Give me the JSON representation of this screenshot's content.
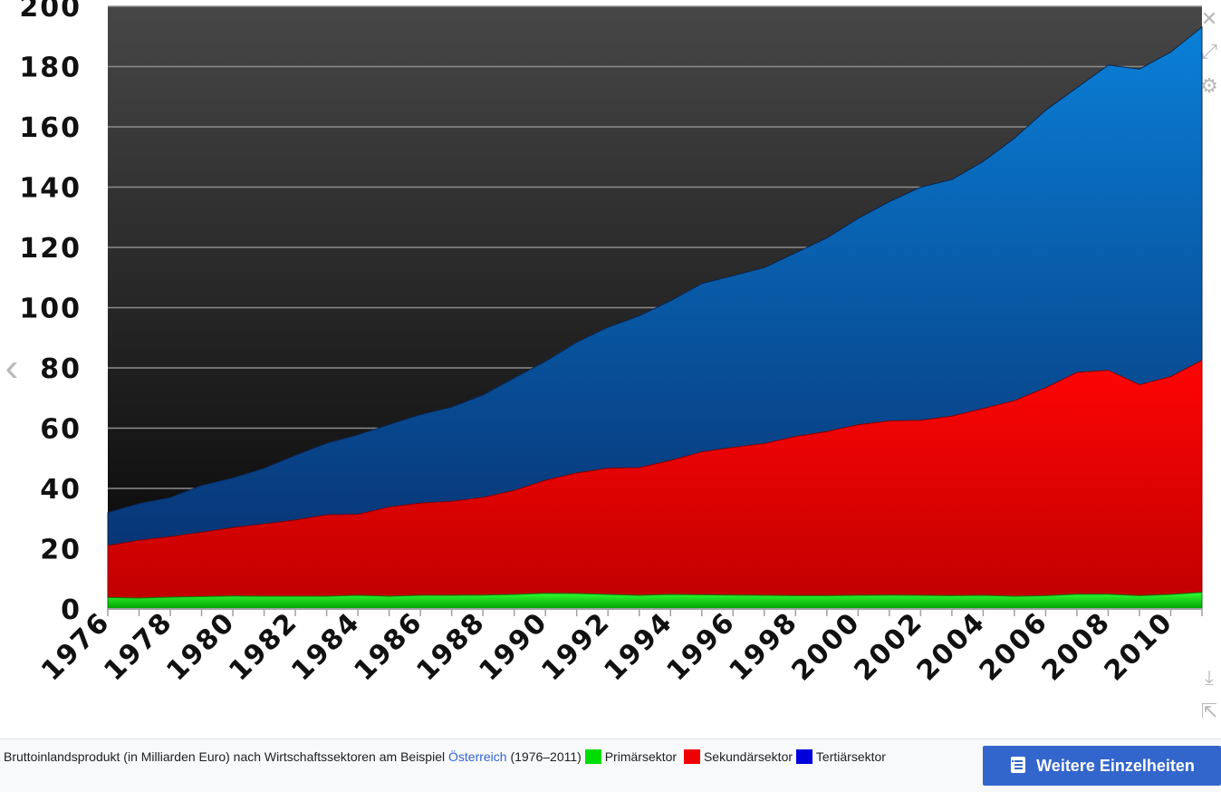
{
  "chart_data": {
    "type": "area",
    "stacked": true,
    "x": [
      1976,
      1977,
      1978,
      1979,
      1980,
      1981,
      1982,
      1983,
      1984,
      1985,
      1986,
      1987,
      1988,
      1989,
      1990,
      1991,
      1992,
      1993,
      1994,
      1995,
      1996,
      1997,
      1998,
      1999,
      2000,
      2001,
      2002,
      2003,
      2004,
      2005,
      2006,
      2007,
      2008,
      2009,
      2010,
      2011
    ],
    "xticks": [
      "1976",
      "1978",
      "1980",
      "1982",
      "1984",
      "1986",
      "1988",
      "1990",
      "1992",
      "1994",
      "1996",
      "1998",
      "2000",
      "2002",
      "2004",
      "2006",
      "2008",
      "2010"
    ],
    "yticks": [
      "0",
      "20",
      "40",
      "60",
      "80",
      "100",
      "120",
      "140",
      "160",
      "180",
      "200"
    ],
    "ylim": [
      0,
      200
    ],
    "grid": true,
    "series": [
      {
        "name": "Primärsektor",
        "color": "#00cc00",
        "values": [
          3.8,
          3.6,
          3.9,
          4.1,
          4.3,
          4.2,
          4.2,
          4.2,
          4.5,
          4.2,
          4.5,
          4.5,
          4.6,
          4.8,
          5.2,
          5.1,
          4.8,
          4.5,
          4.8,
          4.7,
          4.6,
          4.5,
          4.4,
          4.4,
          4.5,
          4.6,
          4.5,
          4.4,
          4.5,
          4.2,
          4.4,
          4.9,
          4.9,
          4.4,
          4.8,
          5.5
        ]
      },
      {
        "name": "Sekundärsektor",
        "color": "#ff0000",
        "values": [
          17.2,
          19.2,
          20.1,
          21.3,
          22.7,
          24.0,
          25.3,
          27.0,
          26.9,
          29.6,
          30.6,
          31.2,
          32.4,
          34.5,
          37.5,
          40.0,
          41.9,
          42.4,
          44.5,
          47.4,
          49.0,
          50.4,
          52.8,
          54.5,
          56.6,
          57.8,
          58.1,
          59.6,
          62.0,
          64.9,
          69.0,
          73.6,
          74.3,
          70.0,
          72.3,
          77.0
        ]
      },
      {
        "name": "Tertiärsektor",
        "color": "#0000cc",
        "values": [
          11.0,
          12.2,
          13.0,
          15.6,
          16.5,
          18.5,
          21.5,
          23.8,
          26.4,
          27.4,
          29.4,
          31.3,
          34.0,
          37.4,
          39.5,
          43.4,
          46.8,
          50.4,
          53.0,
          55.9,
          57.0,
          58.4,
          61.0,
          64.2,
          68.5,
          72.8,
          77.4,
          78.5,
          82.0,
          87.1,
          92.1,
          94.5,
          101.3,
          104.8,
          107.7,
          110.6
        ]
      }
    ]
  },
  "caption": {
    "text_before": "Bruttoinlandsprodukt (in Milliarden Euro) nach Wirtschaftssektoren am Beispiel ",
    "link": "Österreich",
    "text_after": " (1976–2011) ",
    "legend": [
      {
        "label": "Primärsektor",
        "color": "#00dd00"
      },
      {
        "label": "Sekundärsektor",
        "color": "#ee0000"
      },
      {
        "label": "Tertiärsektor",
        "color": "#0000dd"
      }
    ]
  },
  "more_button_label": "Weitere Einzelheiten",
  "icons": {
    "close": "✕",
    "expand": "⤢",
    "settings": "⚙",
    "prev": "‹",
    "download": "⤓",
    "share": "⇱"
  }
}
